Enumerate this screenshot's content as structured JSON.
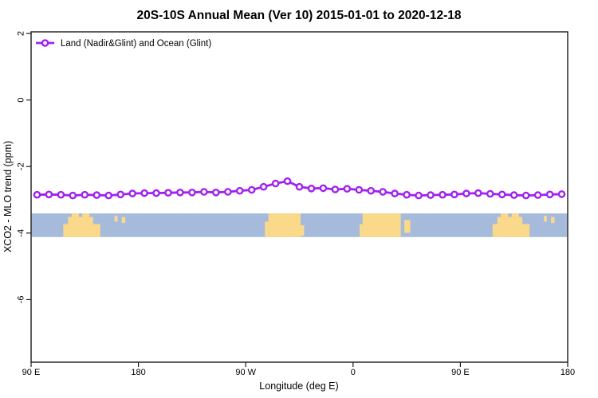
{
  "figure": {
    "title": "20S-10S Annual Mean (Ver 10)   2015-01-01 to 2020-12-18"
  },
  "chart_data": {
    "type": "line",
    "title": "20S-10S Annual Mean (Ver 10)   2015-01-01 to 2020-12-18",
    "xlabel": "Longitude (deg E)",
    "ylabel": "XCO2 - MLO trend (ppm)",
    "xlim": [
      90,
      540
    ],
    "ylim": [
      -7.9,
      2.1
    ],
    "grid": false,
    "x_ticks": [
      {
        "value": 90,
        "label": "90 E"
      },
      {
        "value": 180,
        "label": "180"
      },
      {
        "value": 270,
        "label": "90 W"
      },
      {
        "value": 360,
        "label": "0"
      },
      {
        "value": 450,
        "label": "90 E"
      },
      {
        "value": 540,
        "label": "180"
      }
    ],
    "y_ticks": [
      {
        "value": 2,
        "label": "2"
      },
      {
        "value": 0,
        "label": "0"
      },
      {
        "value": -2,
        "label": "-2"
      },
      {
        "value": -4,
        "label": "-4"
      },
      {
        "value": -6,
        "label": "-6"
      }
    ],
    "legend": {
      "position": "top-left",
      "entries": [
        {
          "label": "Land (Nadir&Glint) and Ocean (Glint)",
          "color": "#A021F0",
          "marker": "open-circle"
        }
      ]
    },
    "series": [
      {
        "name": "Land (Nadir&Glint) and Ocean (Glint)",
        "color": "#A021F0",
        "marker": "open-circle",
        "x": [
          95,
          105,
          115,
          125,
          135,
          145,
          155,
          165,
          175,
          185,
          195,
          205,
          215,
          225,
          235,
          245,
          255,
          265,
          275,
          285,
          295,
          305,
          315,
          325,
          335,
          345,
          355,
          365,
          375,
          385,
          395,
          405,
          415,
          425,
          435,
          445,
          455,
          465,
          475,
          485,
          495,
          505,
          515,
          525,
          535
        ],
        "values": [
          -2.85,
          -2.84,
          -2.85,
          -2.87,
          -2.85,
          -2.86,
          -2.87,
          -2.84,
          -2.81,
          -2.8,
          -2.8,
          -2.79,
          -2.78,
          -2.78,
          -2.76,
          -2.78,
          -2.76,
          -2.73,
          -2.7,
          -2.61,
          -2.51,
          -2.44,
          -2.61,
          -2.66,
          -2.65,
          -2.69,
          -2.67,
          -2.7,
          -2.73,
          -2.76,
          -2.81,
          -2.85,
          -2.87,
          -2.86,
          -2.85,
          -2.84,
          -2.81,
          -2.8,
          -2.82,
          -2.84,
          -2.86,
          -2.87,
          -2.86,
          -2.84,
          -2.83
        ]
      }
    ],
    "map_band": {
      "description": "land/ocean strip for latitude band 20S-10S drawn across plot",
      "value_top": -3.41,
      "value_bottom": -4.12,
      "ocean_color": "#A6BBDB",
      "land_color": "#FAD98A",
      "land_segments": [
        {
          "name": "australia-main",
          "lon": [
            117,
            148
          ],
          "v": [
            0.45,
            1
          ]
        },
        {
          "name": "australia-upper",
          "lon": [
            121,
            142
          ],
          "v": [
            0.15,
            0.45
          ]
        },
        {
          "name": "indonesia-speck-1",
          "lon": [
            124,
            130
          ],
          "v": [
            0,
            0.15
          ]
        },
        {
          "name": "indonesia-speck-2",
          "lon": [
            133,
            139
          ],
          "v": [
            0,
            0.15
          ]
        },
        {
          "name": "fiji-speck-1",
          "lon": [
            160,
            162.5
          ],
          "v": [
            0.1,
            0.35
          ]
        },
        {
          "name": "fiji-speck-2",
          "lon": [
            166,
            169
          ],
          "v": [
            0.15,
            0.4
          ]
        },
        {
          "name": "south-america-main",
          "lon": [
            289,
            316
          ],
          "v": [
            0,
            1
          ]
        },
        {
          "name": "south-america-west",
          "lon": [
            286,
            289
          ],
          "v": [
            0.35,
            1
          ]
        },
        {
          "name": "south-america-east",
          "lon": [
            316,
            319
          ],
          "v": [
            0.5,
            0.95
          ]
        },
        {
          "name": "africa-main",
          "lon": [
            368,
            400
          ],
          "v": [
            0,
            1
          ]
        },
        {
          "name": "africa-west-slope",
          "lon": [
            365.5,
            368
          ],
          "v": [
            0.45,
            1
          ]
        },
        {
          "name": "madagascar",
          "lon": [
            403,
            408
          ],
          "v": [
            0.28,
            0.82
          ]
        },
        {
          "name": "australia-repeat-main",
          "lon": [
            477,
            508
          ],
          "v": [
            0.45,
            1
          ]
        },
        {
          "name": "australia-repeat-upper",
          "lon": [
            481,
            502
          ],
          "v": [
            0.15,
            0.45
          ]
        },
        {
          "name": "indonesia-repeat-speck-1",
          "lon": [
            484,
            490
          ],
          "v": [
            0,
            0.15
          ]
        },
        {
          "name": "indonesia-repeat-speck-2",
          "lon": [
            493,
            499
          ],
          "v": [
            0,
            0.15
          ]
        },
        {
          "name": "fiji-repeat-speck-1",
          "lon": [
            520,
            522.5
          ],
          "v": [
            0.1,
            0.35
          ]
        },
        {
          "name": "fiji-repeat-speck-2",
          "lon": [
            526,
            529
          ],
          "v": [
            0.15,
            0.4
          ]
        }
      ]
    },
    "colors": {
      "series": "#A021F0",
      "frame": "#1a1a1a",
      "ocean": "#A6BBDB",
      "land": "#FAD98A",
      "background": "#ffffff"
    }
  }
}
